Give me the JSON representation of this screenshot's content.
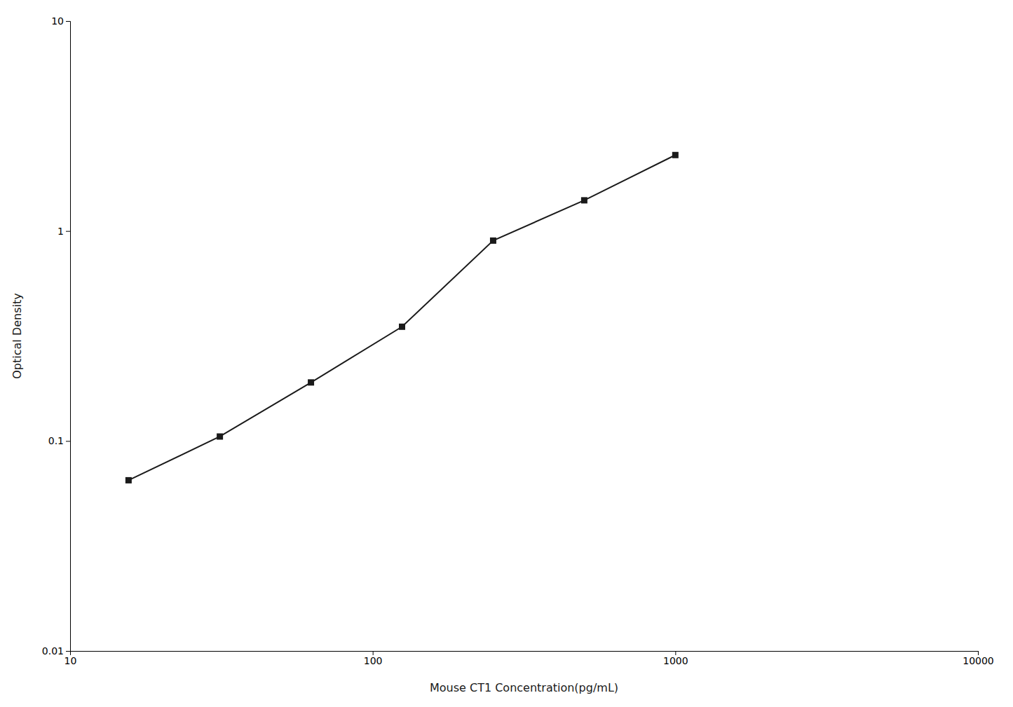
{
  "chart_data": {
    "type": "line",
    "x": [
      15.6,
      31.25,
      62.5,
      125,
      250,
      500,
      1000
    ],
    "values": [
      0.065,
      0.105,
      0.19,
      0.35,
      0.9,
      1.4,
      2.3
    ],
    "xlabel": "Mouse CT1 Concentration(pg/mL)",
    "ylabel": "Optical Density",
    "xlim": [
      10,
      10000
    ],
    "ylim": [
      0.01,
      10
    ],
    "xticks": [
      10,
      100,
      1000,
      10000
    ],
    "yticks": [
      0.01,
      0.1,
      1,
      10
    ],
    "log": true,
    "color": "#1a1a1a",
    "marker": "square",
    "grid": false
  }
}
